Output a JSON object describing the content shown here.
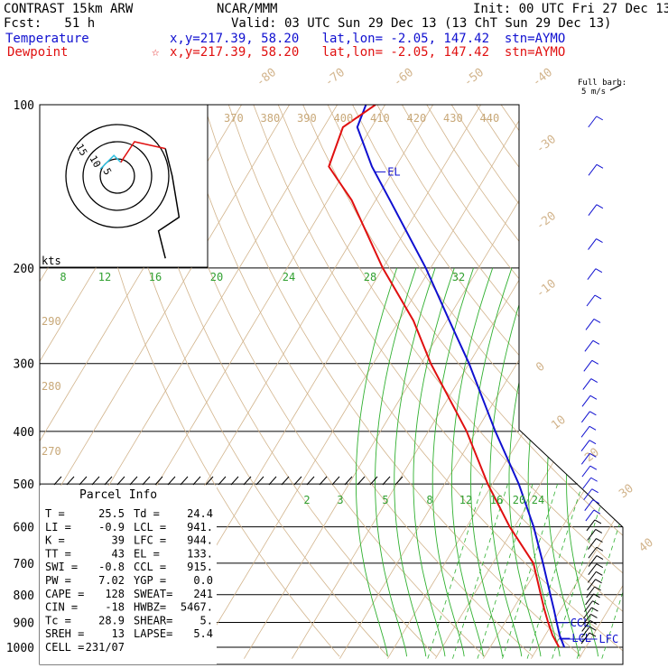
{
  "header": {
    "title": "CONTRAST 15km ARW",
    "center": "NCAR/MMM",
    "init": "Init: 00 UTC Fri 27 Dec 13",
    "fcst": "Fcst:   51 h",
    "valid": "Valid: 03 UTC Sun 29 Dec 13 (13 ChT Sun 29 Dec 13)",
    "temp_label": "Temperature",
    "temp_info": "x,y=217.39, 58.20   lat,lon= -2.05, 147.42  stn=AYMO",
    "dew_label": "Dewpoint",
    "dew_info": "x,y=217.39, 58.20   lat,lon= -2.05, 147.42  stn=AYMO",
    "colors": {
      "temperature": "#1010d0",
      "dewpoint": "#e01010"
    }
  },
  "chart_data": {
    "type": "line",
    "title": "Skew-T log-P sounding",
    "y_axis": {
      "label": "pressure (hPa)",
      "scale": "log",
      "ticks": [
        "100",
        "200",
        "300",
        "400",
        "500",
        "600",
        "700",
        "800",
        "900",
        "1000"
      ]
    },
    "isotherm_labels": [
      "-80",
      "-70",
      "-60",
      "-50",
      "-40",
      "-30",
      "-20",
      "-10",
      "0",
      "10",
      "20",
      "30",
      "40"
    ],
    "theta_labels_top": [
      "370",
      "380",
      "390",
      "400",
      "410",
      "420",
      "430",
      "440"
    ],
    "theta_labels_left": [
      "290",
      "280",
      "270"
    ],
    "mixing_ratio_labels_top": [
      "8",
      "12",
      "16",
      "20",
      "24",
      "28",
      "32"
    ],
    "mixing_ratio_labels_mid": [
      "2",
      "3",
      "5",
      "8",
      "12",
      "16",
      "20",
      "24"
    ],
    "series": [
      {
        "name": "Temperature",
        "color": "#1010d0",
        "points": [
          {
            "p": 1000,
            "t": 25.5
          },
          {
            "p": 950,
            "t": 23.0
          },
          {
            "p": 900,
            "t": 20.8
          },
          {
            "p": 850,
            "t": 18.5
          },
          {
            "p": 800,
            "t": 16.0
          },
          {
            "p": 700,
            "t": 10.5
          },
          {
            "p": 600,
            "t": 4.0
          },
          {
            "p": 500,
            "t": -4.5
          },
          {
            "p": 400,
            "t": -16.0
          },
          {
            "p": 300,
            "t": -30.0
          },
          {
            "p": 250,
            "t": -39.5
          },
          {
            "p": 200,
            "t": -51.0
          },
          {
            "p": 150,
            "t": -67.0
          },
          {
            "p": 130,
            "t": -75.0
          },
          {
            "p": 110,
            "t": -83.0
          },
          {
            "p": 100,
            "t": -84.0
          }
        ]
      },
      {
        "name": "Dewpoint",
        "color": "#e01010",
        "points": [
          {
            "p": 1000,
            "t": 24.4
          },
          {
            "p": 950,
            "t": 21.5
          },
          {
            "p": 900,
            "t": 19.0
          },
          {
            "p": 850,
            "t": 16.5
          },
          {
            "p": 800,
            "t": 14.0
          },
          {
            "p": 700,
            "t": 8.5
          },
          {
            "p": 600,
            "t": -1.0
          },
          {
            "p": 500,
            "t": -11.0
          },
          {
            "p": 400,
            "t": -22.0
          },
          {
            "p": 300,
            "t": -38.0
          },
          {
            "p": 250,
            "t": -47.0
          },
          {
            "p": 200,
            "t": -60.0
          },
          {
            "p": 150,
            "t": -75.0
          },
          {
            "p": 130,
            "t": -84.0
          },
          {
            "p": 110,
            "t": -86.0
          },
          {
            "p": 100,
            "t": -82.0
          }
        ]
      }
    ],
    "level_markers": [
      {
        "label": "EL",
        "p": 133
      },
      {
        "label": "CCL",
        "p": 915
      },
      {
        "label": "LCL",
        "p": 941
      },
      {
        "label": "LFC",
        "p": 944
      }
    ],
    "hodograph": {
      "units": "kts",
      "ring_labels": [
        "15",
        "10",
        "5"
      ],
      "trace": [
        [
          -5,
          -2
        ],
        [
          -1,
          -6
        ],
        [
          1,
          -4
        ],
        [
          5,
          -10
        ],
        [
          14,
          -8
        ],
        [
          16,
          0
        ],
        [
          18,
          12
        ],
        [
          12,
          16
        ],
        [
          14,
          24
        ]
      ]
    },
    "wind_barbs": {
      "title": "Full barb:",
      "subtitle": "5 m/s"
    }
  },
  "parcel_info": {
    "title": "Parcel Info",
    "rows": [
      [
        "T  =",
        "25.5",
        "Td =",
        "24.4"
      ],
      [
        "LI =",
        "-0.9",
        "LCL =",
        "941."
      ],
      [
        "K  =",
        "39",
        "LFC =",
        "944."
      ],
      [
        "TT =",
        "43",
        "EL =",
        "133."
      ],
      [
        "SWI =",
        "-0.8",
        "CCL =",
        "915."
      ],
      [
        "PW =",
        "7.02",
        "YGP =",
        "0.0"
      ],
      [
        "CAPE =",
        "128",
        "SWEAT=",
        "241"
      ],
      [
        "CIN =",
        "-18",
        "HWBZ=",
        "5467."
      ],
      [
        "Tc =",
        "28.9",
        "SHEAR=",
        "5."
      ],
      [
        "SREH =",
        "13",
        "LAPSE=",
        "5.4"
      ],
      [
        "CELL =",
        "231/07",
        "",
        ""
      ]
    ]
  }
}
